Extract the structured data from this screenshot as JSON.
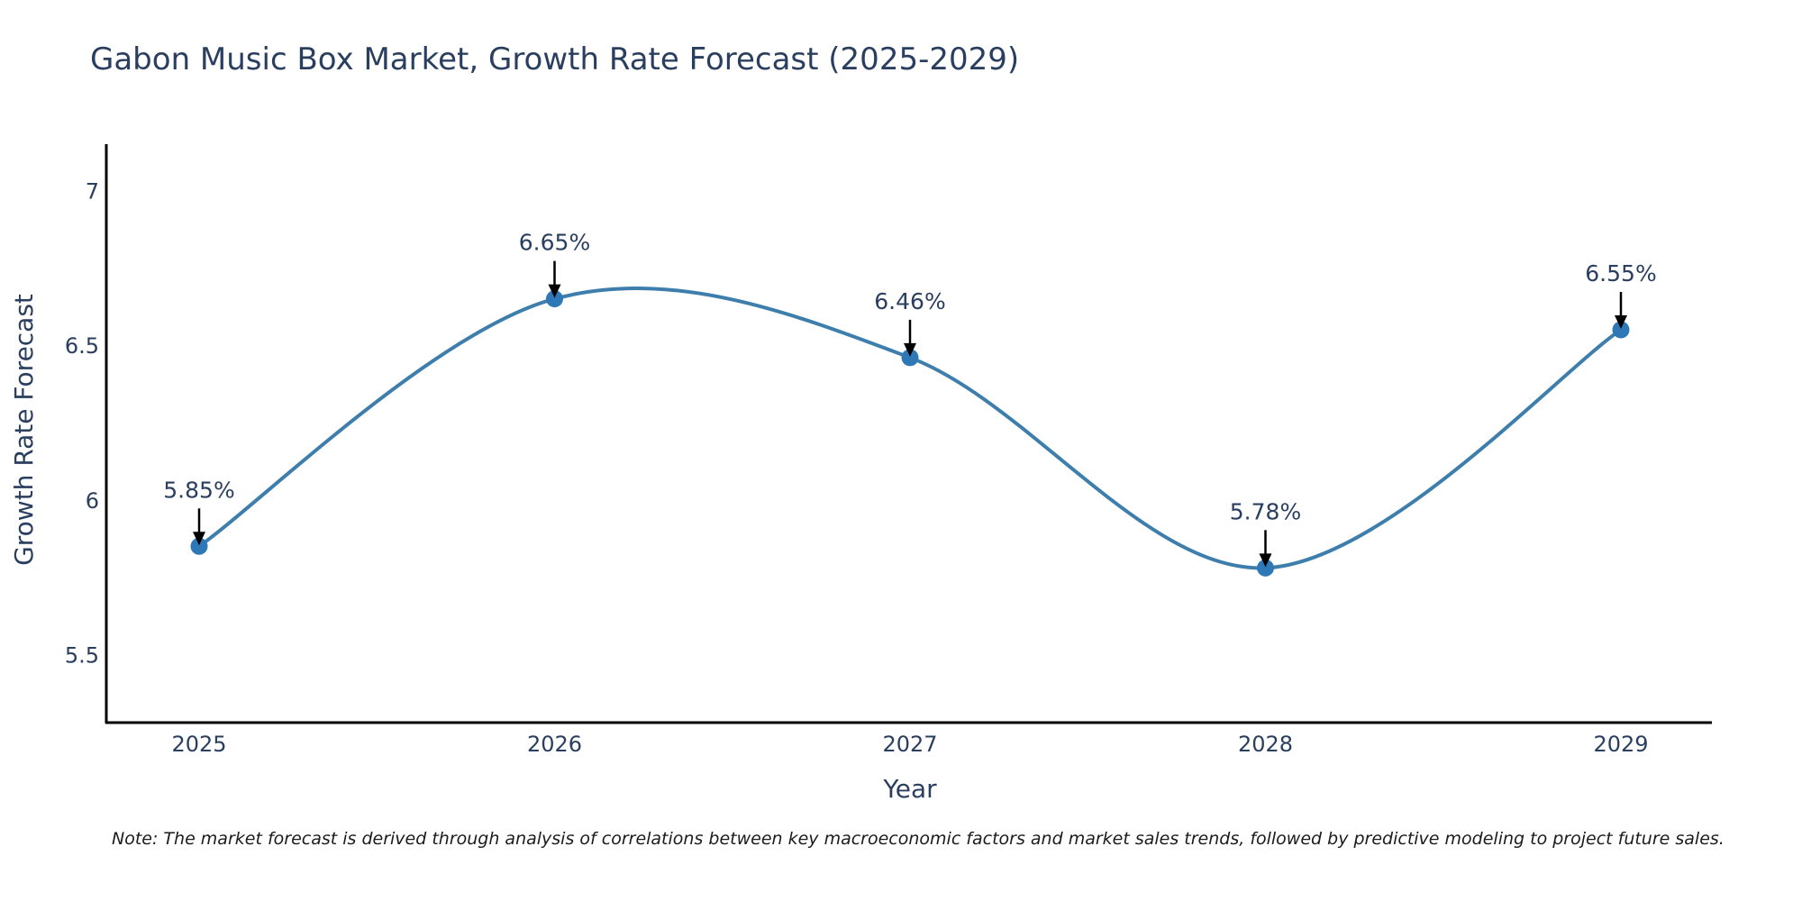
{
  "chart_data": {
    "type": "line",
    "title": "Gabon Music Box Market, Growth Rate Forecast (2025-2029)",
    "xlabel": "Year",
    "ylabel": "Growth Rate Forecast",
    "categories": [
      "2025",
      "2026",
      "2027",
      "2028",
      "2029"
    ],
    "series": [
      {
        "name": "Growth Rate Forecast",
        "values": [
          5.85,
          6.65,
          6.46,
          5.78,
          6.55
        ],
        "labels": [
          "5.85%",
          "6.65%",
          "6.46%",
          "5.78%",
          "6.55%"
        ],
        "color": "#3d7eac",
        "marker_color": "#2f78b7"
      }
    ],
    "yticks": [
      5.5,
      6,
      6.5,
      7
    ],
    "ytick_labels": [
      "5.5",
      "6",
      "6.5",
      "7"
    ],
    "ylim": [
      5.28,
      7.15
    ],
    "grid": false,
    "smooth": true,
    "annotation_arrows": true
  },
  "note": "Note: The market forecast is derived through analysis of correlations between key macroeconomic factors and market sales trends, followed by predictive modeling to project future sales."
}
